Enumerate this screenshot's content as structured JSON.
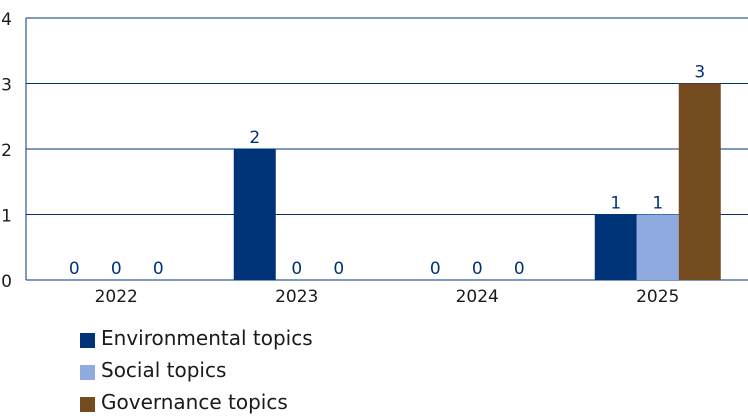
{
  "chart_data": {
    "type": "bar",
    "categories": [
      "2022",
      "2023",
      "2024",
      "2025"
    ],
    "series": [
      {
        "name": "Environmental topics",
        "color": "#003478",
        "values": [
          0,
          2,
          0,
          1
        ]
      },
      {
        "name": "Social topics",
        "color": "#8eaadf",
        "values": [
          0,
          0,
          0,
          1
        ]
      },
      {
        "name": "Governance topics",
        "color": "#744a1f",
        "values": [
          0,
          0,
          0,
          3
        ]
      }
    ],
    "ylim": [
      0,
      4
    ],
    "yticks": [
      "0",
      "1",
      "2",
      "3",
      "4"
    ],
    "grid": true,
    "legend_position": "bottom-left",
    "colors": {
      "axis": "#003478",
      "grid": "#003478",
      "text": "#1a1a1a",
      "label": "#003478"
    }
  }
}
